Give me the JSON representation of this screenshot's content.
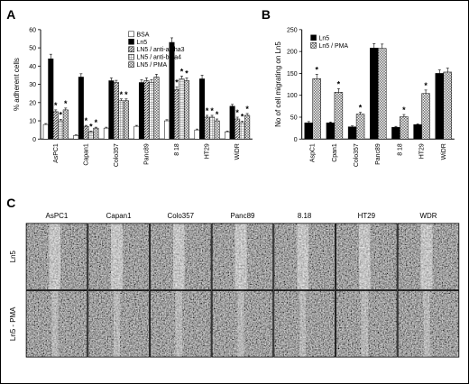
{
  "panels": {
    "a": "A",
    "b": "B",
    "c": "C"
  },
  "chart_data": [
    {
      "type": "bar",
      "panel": "A",
      "ylabel": "% adherent cells",
      "ylim": [
        0,
        60
      ],
      "yticks": [
        0,
        10,
        20,
        30,
        40,
        50,
        60
      ],
      "categories": [
        "AsPC1",
        "Capan1",
        "Colo357",
        "Panc89",
        "8 18",
        "HT29",
        "WiDR"
      ],
      "legend_position": "top-right",
      "series": [
        {
          "name": "BSA",
          "fill": "white",
          "values": [
            8,
            2,
            6,
            7,
            10,
            5,
            4
          ],
          "errors": [
            0.5,
            0.3,
            0.5,
            0.5,
            0.6,
            0.5,
            0.4
          ],
          "sig": [
            false,
            false,
            false,
            false,
            false,
            false,
            false
          ]
        },
        {
          "name": "Ln5",
          "fill": "black",
          "values": [
            44,
            34,
            32,
            31,
            53,
            33,
            18
          ],
          "errors": [
            2.5,
            1.8,
            1.5,
            1.5,
            2.5,
            2.0,
            1.0
          ],
          "sig": [
            false,
            false,
            false,
            false,
            false,
            false,
            false
          ]
        },
        {
          "name": "LN5 / anti-alpha3",
          "fill": "hatch",
          "values": [
            15,
            7,
            31,
            32,
            27,
            12,
            11
          ],
          "errors": [
            1.0,
            0.5,
            1.2,
            1.5,
            1.5,
            1.0,
            1.0
          ],
          "sig": [
            true,
            true,
            false,
            false,
            true,
            true,
            true
          ]
        },
        {
          "name": "LN5 / anti-beta4",
          "fill": "grid",
          "values": [
            10,
            4,
            21,
            31,
            33,
            12,
            9
          ],
          "errors": [
            0.8,
            0.4,
            1.0,
            1.5,
            1.5,
            1.0,
            0.8
          ],
          "sig": [
            true,
            true,
            true,
            false,
            true,
            true,
            true
          ]
        },
        {
          "name": "LN5 / PMA",
          "fill": "check",
          "values": [
            16,
            6,
            21,
            34,
            32,
            10,
            13
          ],
          "errors": [
            1.0,
            0.5,
            1.0,
            1.5,
            1.5,
            1.0,
            1.0
          ],
          "sig": [
            true,
            true,
            true,
            false,
            true,
            true,
            true
          ]
        }
      ]
    },
    {
      "type": "bar",
      "panel": "B",
      "ylabel": "No of cell migrating on Ln5",
      "ylim": [
        0,
        250
      ],
      "yticks": [
        0,
        50,
        100,
        150,
        200,
        250
      ],
      "categories": [
        "AspC1",
        "Cpan1",
        "Colo357",
        "Panc89",
        "8 18",
        "HT29",
        "WiDR"
      ],
      "legend_position": "top-left",
      "series": [
        {
          "name": "Ln5",
          "fill": "black",
          "values": [
            37,
            37,
            28,
            208,
            27,
            33,
            150
          ],
          "errors": [
            3,
            2,
            2,
            10,
            2,
            2,
            8
          ],
          "sig": [
            false,
            false,
            false,
            false,
            false,
            false,
            false
          ]
        },
        {
          "name": "Ln5 / PMA",
          "fill": "check",
          "values": [
            138,
            107,
            57,
            207,
            51,
            104,
            153
          ],
          "errors": [
            10,
            8,
            4,
            10,
            5,
            8,
            9
          ],
          "sig": [
            true,
            true,
            true,
            false,
            true,
            true,
            false
          ]
        }
      ]
    }
  ],
  "micrographs": {
    "columns": [
      "AsPC1",
      "Capan1",
      "Colo357",
      "Panc89",
      "8.18",
      "HT29",
      "WDR"
    ],
    "rows": [
      "Ln5",
      "Ln5 - PMA"
    ]
  }
}
